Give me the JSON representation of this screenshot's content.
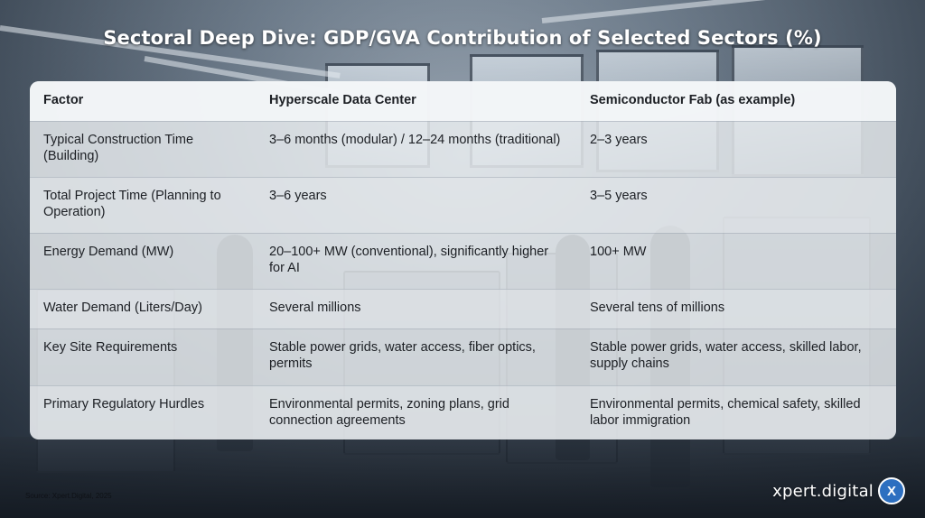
{
  "title": "Sectoral Deep Dive: GDP/GVA Contribution of Selected Sectors (%)",
  "table": {
    "headers": [
      "Factor",
      "Hyperscale Data Center",
      "Semiconductor Fab (as example)"
    ],
    "rows": [
      [
        "Typical Construction Time (Building)",
        "3–6 months (modular) / 12–24 months (traditional)",
        "2–3 years"
      ],
      [
        "Total Project Time (Planning to Operation)",
        "3–6 years",
        "3–5 years"
      ],
      [
        "Energy Demand (MW)",
        "20–100+ MW (conventional), significantly higher for AI",
        "100+ MW"
      ],
      [
        "Water Demand (Liters/Day)",
        "Several millions",
        "Several tens of millions"
      ],
      [
        "Key Site Requirements",
        "Stable power grids, water access, fiber optics, permits",
        "Stable power grids, water access, skilled labor, supply chains"
      ],
      [
        "Primary Regulatory Hurdles",
        "Environmental permits, zoning plans, grid connection agreements",
        "Environmental permits, chemical safety, skilled labor immigration"
      ]
    ]
  },
  "source": "Source: Xpert.Digital, 2025",
  "brand": {
    "name": "xpert.digital",
    "logo_letter": "X",
    "logo_color": "#2d6fc0",
    "logo_icon": "x-logo-icon"
  }
}
